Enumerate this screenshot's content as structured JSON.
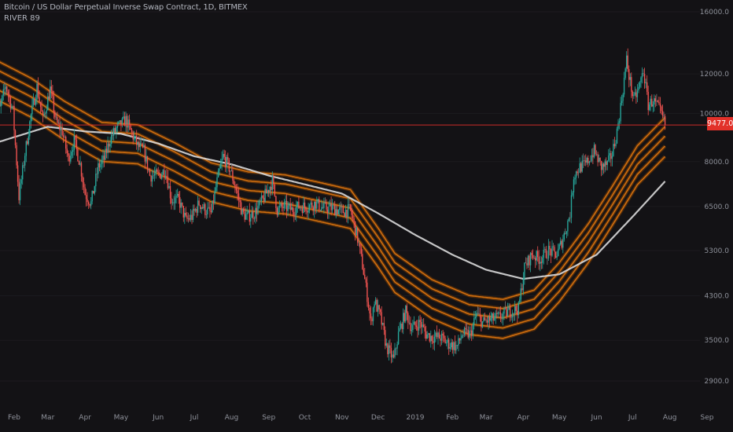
{
  "header": {
    "title": "Bitcoin / US Dollar Perpetual Inverse Swap Contract, 1D, BITMEX",
    "indicator": "RIVER 89"
  },
  "price_tag": {
    "label": "9477.0",
    "value": 9477
  },
  "colors": {
    "background": "#131215",
    "up_candle": "#26a69a",
    "down_candle": "#ef5350",
    "neutral_candle": "#7e7a7a",
    "river_band": "#cf6e0f",
    "river_glow": "#5a300a",
    "long_ma": "#d9d9d9",
    "price_line": "#e2312a",
    "price_tag_bg": "#e2312a",
    "axis_text": "#8f929b"
  },
  "chart_data": {
    "type": "candlestick",
    "title": "Bitcoin / US Dollar Perpetual Inverse Swap Contract, 1D, BITMEX",
    "y_axis": {
      "scale": "log",
      "position": "right",
      "ticks": [
        16000,
        12000,
        10000,
        8000,
        6500,
        5300,
        4300,
        3500,
        2900
      ],
      "tick_labels": [
        "16000.0",
        "12000.0",
        "10000.0",
        "8000.0",
        "6500.0",
        "5300.0",
        "4300.0",
        "3500.0",
        "2900.0"
      ],
      "range": [
        2600,
        17000
      ]
    },
    "x_axis": {
      "ticks": [
        "Feb",
        "Mar",
        "Apr",
        "May",
        "Jun",
        "Jul",
        "Aug",
        "Sep",
        "Oct",
        "Nov",
        "Dec",
        "2019",
        "Feb",
        "Mar",
        "Apr",
        "May",
        "Jun",
        "Jul",
        "Aug",
        "Sep"
      ],
      "tick_dates": [
        "2018-02-01",
        "2018-03-01",
        "2018-04-01",
        "2018-05-01",
        "2018-06-01",
        "2018-07-01",
        "2018-08-01",
        "2018-09-01",
        "2018-10-01",
        "2018-11-01",
        "2018-12-01",
        "2019-01-01",
        "2019-02-01",
        "2019-03-01",
        "2019-04-01",
        "2019-05-01",
        "2019-06-01",
        "2019-07-01",
        "2019-08-01",
        "2019-09-01"
      ]
    },
    "close_series": [
      [
        "2018-01-15",
        11800
      ],
      [
        "2018-01-20",
        10200
      ],
      [
        "2018-01-25",
        11400
      ],
      [
        "2018-01-31",
        10100
      ],
      [
        "2018-02-05",
        6800
      ],
      [
        "2018-02-10",
        8300
      ],
      [
        "2018-02-15",
        9900
      ],
      [
        "2018-02-20",
        11300
      ],
      [
        "2018-02-25",
        9700
      ],
      [
        "2018-03-03",
        11200
      ],
      [
        "2018-03-08",
        9600
      ],
      [
        "2018-03-13",
        9200
      ],
      [
        "2018-03-18",
        8100
      ],
      [
        "2018-03-23",
        8800
      ],
      [
        "2018-03-28",
        7900
      ],
      [
        "2018-04-01",
        6900
      ],
      [
        "2018-04-06",
        6600
      ],
      [
        "2018-04-12",
        7800
      ],
      [
        "2018-04-17",
        8100
      ],
      [
        "2018-04-22",
        8900
      ],
      [
        "2018-04-27",
        9300
      ],
      [
        "2018-05-05",
        9700
      ],
      [
        "2018-05-10",
        9100
      ],
      [
        "2018-05-15",
        8600
      ],
      [
        "2018-05-20",
        8400
      ],
      [
        "2018-05-25",
        7500
      ],
      [
        "2018-06-01",
        7500
      ],
      [
        "2018-06-07",
        7700
      ],
      [
        "2018-06-12",
        6700
      ],
      [
        "2018-06-18",
        6700
      ],
      [
        "2018-06-24",
        6100
      ],
      [
        "2018-06-29",
        6200
      ],
      [
        "2018-07-05",
        6600
      ],
      [
        "2018-07-10",
        6400
      ],
      [
        "2018-07-15",
        6300
      ],
      [
        "2018-07-20",
        7300
      ],
      [
        "2018-07-25",
        8200
      ],
      [
        "2018-07-31",
        7700
      ],
      [
        "2018-08-05",
        7000
      ],
      [
        "2018-08-10",
        6300
      ],
      [
        "2018-08-14",
        6200
      ],
      [
        "2018-08-20",
        6300
      ],
      [
        "2018-08-27",
        6700
      ],
      [
        "2018-09-04",
        7300
      ],
      [
        "2018-09-08",
        6400
      ],
      [
        "2018-09-14",
        6500
      ],
      [
        "2018-09-20",
        6400
      ],
      [
        "2018-09-26",
        6500
      ],
      [
        "2018-10-03",
        6500
      ],
      [
        "2018-10-10",
        6600
      ],
      [
        "2018-10-16",
        6450
      ],
      [
        "2018-10-24",
        6450
      ],
      [
        "2018-11-01",
        6350
      ],
      [
        "2018-11-08",
        6400
      ],
      [
        "2018-11-14",
        5600
      ],
      [
        "2018-11-19",
        4800
      ],
      [
        "2018-11-22",
        4300
      ],
      [
        "2018-11-25",
        3800
      ],
      [
        "2018-11-28",
        4200
      ],
      [
        "2018-12-03",
        3900
      ],
      [
        "2018-12-08",
        3400
      ],
      [
        "2018-12-14",
        3200
      ],
      [
        "2018-12-18",
        3600
      ],
      [
        "2018-12-24",
        4000
      ],
      [
        "2018-12-29",
        3700
      ],
      [
        "2019-01-05",
        3800
      ],
      [
        "2019-01-10",
        3600
      ],
      [
        "2019-01-15",
        3550
      ],
      [
        "2019-01-22",
        3550
      ],
      [
        "2019-01-28",
        3450
      ],
      [
        "2019-02-05",
        3400
      ],
      [
        "2019-02-09",
        3600
      ],
      [
        "2019-02-16",
        3600
      ],
      [
        "2019-02-21",
        3950
      ],
      [
        "2019-02-26",
        3800
      ],
      [
        "2019-03-05",
        3850
      ],
      [
        "2019-03-12",
        3900
      ],
      [
        "2019-03-20",
        4000
      ],
      [
        "2019-03-28",
        4050
      ],
      [
        "2019-04-02",
        4900
      ],
      [
        "2019-04-08",
        5200
      ],
      [
        "2019-04-15",
        5100
      ],
      [
        "2019-04-22",
        5300
      ],
      [
        "2019-04-29",
        5200
      ],
      [
        "2019-05-05",
        5700
      ],
      [
        "2019-05-10",
        6300
      ],
      [
        "2019-05-13",
        7500
      ],
      [
        "2019-05-18",
        7800
      ],
      [
        "2019-05-23",
        7900
      ],
      [
        "2019-05-30",
        8400
      ],
      [
        "2019-06-05",
        7800
      ],
      [
        "2019-06-10",
        7900
      ],
      [
        "2019-06-14",
        8300
      ],
      [
        "2019-06-18",
        9200
      ],
      [
        "2019-06-22",
        10700
      ],
      [
        "2019-06-26",
        12800
      ],
      [
        "2019-06-28",
        11900
      ],
      [
        "2019-07-02",
        10600
      ],
      [
        "2019-07-06",
        11200
      ],
      [
        "2019-07-10",
        12200
      ],
      [
        "2019-07-14",
        10400
      ],
      [
        "2019-07-18",
        10600
      ],
      [
        "2019-07-22",
        10300
      ],
      [
        "2019-07-26",
        9800
      ],
      [
        "2019-07-28",
        9477
      ]
    ],
    "river_bands": {
      "name": "RIVER 89",
      "middle": [
        [
          "2018-01-15",
          11800
        ],
        [
          "2018-02-15",
          10800
        ],
        [
          "2018-03-15",
          9700
        ],
        [
          "2018-04-15",
          8800
        ],
        [
          "2018-05-15",
          8700
        ],
        [
          "2018-06-15",
          8000
        ],
        [
          "2018-07-15",
          7300
        ],
        [
          "2018-08-15",
          7000
        ],
        [
          "2018-09-15",
          6900
        ],
        [
          "2018-10-15",
          6650
        ],
        [
          "2018-11-08",
          6450
        ],
        [
          "2018-12-01",
          5400
        ],
        [
          "2018-12-15",
          4800
        ],
        [
          "2019-01-15",
          4250
        ],
        [
          "2019-02-15",
          3950
        ],
        [
          "2019-03-15",
          3880
        ],
        [
          "2019-04-10",
          4050
        ],
        [
          "2019-05-01",
          4600
        ],
        [
          "2019-05-25",
          5500
        ],
        [
          "2019-06-15",
          6600
        ],
        [
          "2019-07-05",
          7900
        ],
        [
          "2019-07-28",
          9000
        ]
      ],
      "offsets": [
        1.09,
        1.045,
        1.0,
        0.955,
        0.91
      ]
    },
    "long_ma": {
      "name": "",
      "values": [
        [
          "2018-01-15",
          8700
        ],
        [
          "2018-03-01",
          9400
        ],
        [
          "2018-04-01",
          9200
        ],
        [
          "2018-05-01",
          9100
        ],
        [
          "2018-06-01",
          8700
        ],
        [
          "2018-07-01",
          8200
        ],
        [
          "2018-08-01",
          7900
        ],
        [
          "2018-09-01",
          7500
        ],
        [
          "2018-10-01",
          7200
        ],
        [
          "2018-11-01",
          6900
        ],
        [
          "2018-12-01",
          6300
        ],
        [
          "2019-01-01",
          5700
        ],
        [
          "2019-02-01",
          5200
        ],
        [
          "2019-03-01",
          4850
        ],
        [
          "2019-04-01",
          4650
        ],
        [
          "2019-05-01",
          4750
        ],
        [
          "2019-06-01",
          5200
        ],
        [
          "2019-07-01",
          6200
        ],
        [
          "2019-07-28",
          7300
        ]
      ]
    },
    "last_price": 9477
  }
}
